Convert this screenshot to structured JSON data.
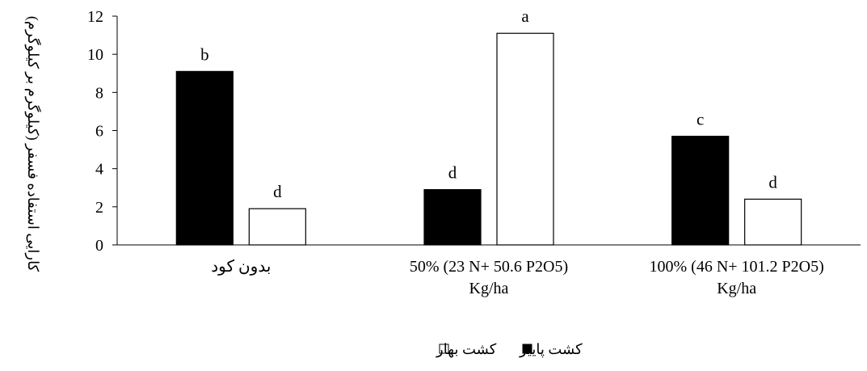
{
  "chart_data": {
    "type": "bar",
    "ylabel": "کارایی استفاده فسفر (کیلوگرم بر کیلوگرم)",
    "ylim": [
      0,
      12
    ],
    "yticks": [
      0,
      2,
      4,
      6,
      8,
      10,
      12
    ],
    "grid": false,
    "legend_position": "bottom",
    "categories": [
      [
        "بدون کود"
      ],
      [
        "50% (23 N+ 50.6 P2O5)",
        "Kg/ha"
      ],
      [
        "100% (46 N+ 101.2 P2O5)",
        "Kg/ha"
      ]
    ],
    "series": [
      {
        "name": "کشت پاییز",
        "color": "#000000",
        "values": [
          9.1,
          2.9,
          5.7
        ],
        "labels": [
          "b",
          "d",
          "c"
        ]
      },
      {
        "name": "کشت بهار",
        "color": "#ffffff",
        "values": [
          1.9,
          11.1,
          2.4
        ],
        "labels": [
          "d",
          "a",
          "d"
        ]
      }
    ]
  }
}
